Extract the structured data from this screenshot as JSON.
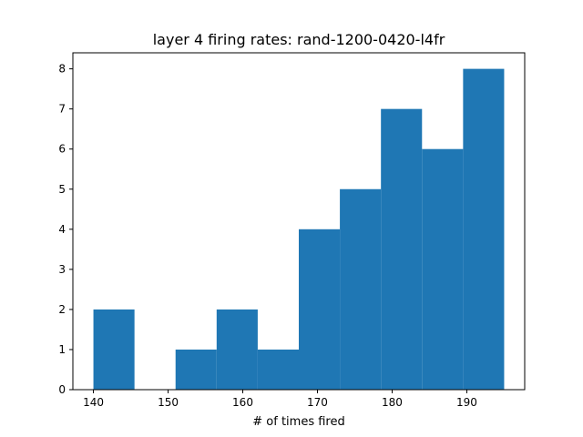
{
  "chart_data": {
    "type": "bar",
    "histogram": true,
    "title": "layer 4 firing rates: rand-1200-0420-l4fr",
    "xlabel": "# of times fired",
    "ylabel": "",
    "bins": [
      {
        "start": 140.0,
        "end": 145.5,
        "count": 2
      },
      {
        "start": 145.5,
        "end": 151.0,
        "count": 0
      },
      {
        "start": 151.0,
        "end": 156.5,
        "count": 1
      },
      {
        "start": 156.5,
        "end": 162.0,
        "count": 2
      },
      {
        "start": 162.0,
        "end": 167.5,
        "count": 1
      },
      {
        "start": 167.5,
        "end": 173.0,
        "count": 4
      },
      {
        "start": 173.0,
        "end": 178.5,
        "count": 5
      },
      {
        "start": 178.5,
        "end": 184.0,
        "count": 7
      },
      {
        "start": 184.0,
        "end": 189.5,
        "count": 6
      },
      {
        "start": 189.5,
        "end": 195.0,
        "count": 8
      }
    ],
    "xlim": [
      137.25,
      197.75
    ],
    "ylim": [
      0,
      8.4
    ],
    "xticks": [
      140,
      150,
      160,
      170,
      180,
      190
    ],
    "yticks": [
      0,
      1,
      2,
      3,
      4,
      5,
      6,
      7,
      8
    ],
    "bar_color": "#1f77b4",
    "grid": false,
    "legend": "none"
  }
}
